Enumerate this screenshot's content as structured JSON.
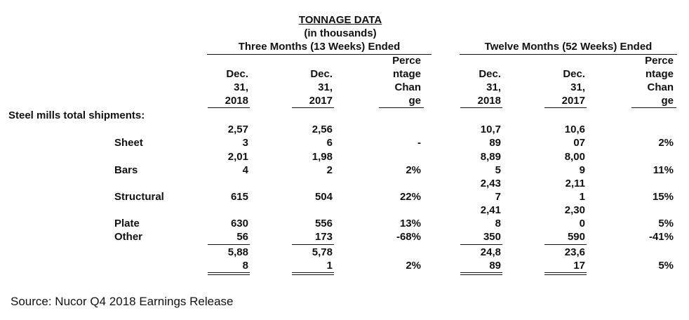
{
  "title": "TONNAGE DATA",
  "subtitle": "(in thousands)",
  "group_headers": [
    "Three Months (13 Weeks) Ended",
    "Twelve Months (52 Weeks) Ended"
  ],
  "col_headers": {
    "a": [
      "Dec.",
      "31,",
      "2018"
    ],
    "b": [
      "Dec.",
      "31,",
      "2017"
    ],
    "c": [
      "Perce",
      "ntage",
      "Chan",
      "ge"
    ],
    "d": [
      "Dec.",
      "31,",
      "2018"
    ],
    "e": [
      "Dec.",
      "31,",
      "2017"
    ],
    "f": [
      "Perce",
      "ntage",
      "Chan",
      "ge"
    ]
  },
  "section_label": "Steel mills total shipments:",
  "rows": [
    {
      "label": "Sheet",
      "a": [
        "2,57",
        "3"
      ],
      "b": [
        "2,56",
        "6"
      ],
      "c": "-",
      "d": [
        "10,7",
        "89"
      ],
      "e": [
        "10,6",
        "07"
      ],
      "f": "2%"
    },
    {
      "label": "Bars",
      "a": [
        "2,01",
        "4"
      ],
      "b": [
        "1,98",
        "2"
      ],
      "c": "2%",
      "d": [
        "8,89",
        "5"
      ],
      "e": [
        "8,00",
        "9"
      ],
      "f": "11%"
    },
    {
      "label": "Structural",
      "a": [
        "615"
      ],
      "b": [
        "504"
      ],
      "c": "22%",
      "d": [
        "2,43",
        "7"
      ],
      "e": [
        "2,11",
        "1"
      ],
      "f": "15%"
    },
    {
      "label": "Plate",
      "a": [
        "630"
      ],
      "b": [
        "556"
      ],
      "c": "13%",
      "d": [
        "2,41",
        "8"
      ],
      "e": [
        "2,30",
        "0"
      ],
      "f": "5%"
    },
    {
      "label": "Other",
      "a": [
        "56"
      ],
      "b": [
        "173"
      ],
      "c": "-68%",
      "d": [
        "350"
      ],
      "e": [
        "590"
      ],
      "f": "-41%"
    }
  ],
  "total": {
    "a": [
      "5,88",
      "8"
    ],
    "b": [
      "5,78",
      "1"
    ],
    "c": "2%",
    "d": [
      "24,8",
      "89"
    ],
    "e": [
      "23,6",
      "17"
    ],
    "f": "5%"
  },
  "source": "Source: Nucor Q4 2018 Earnings Release"
}
